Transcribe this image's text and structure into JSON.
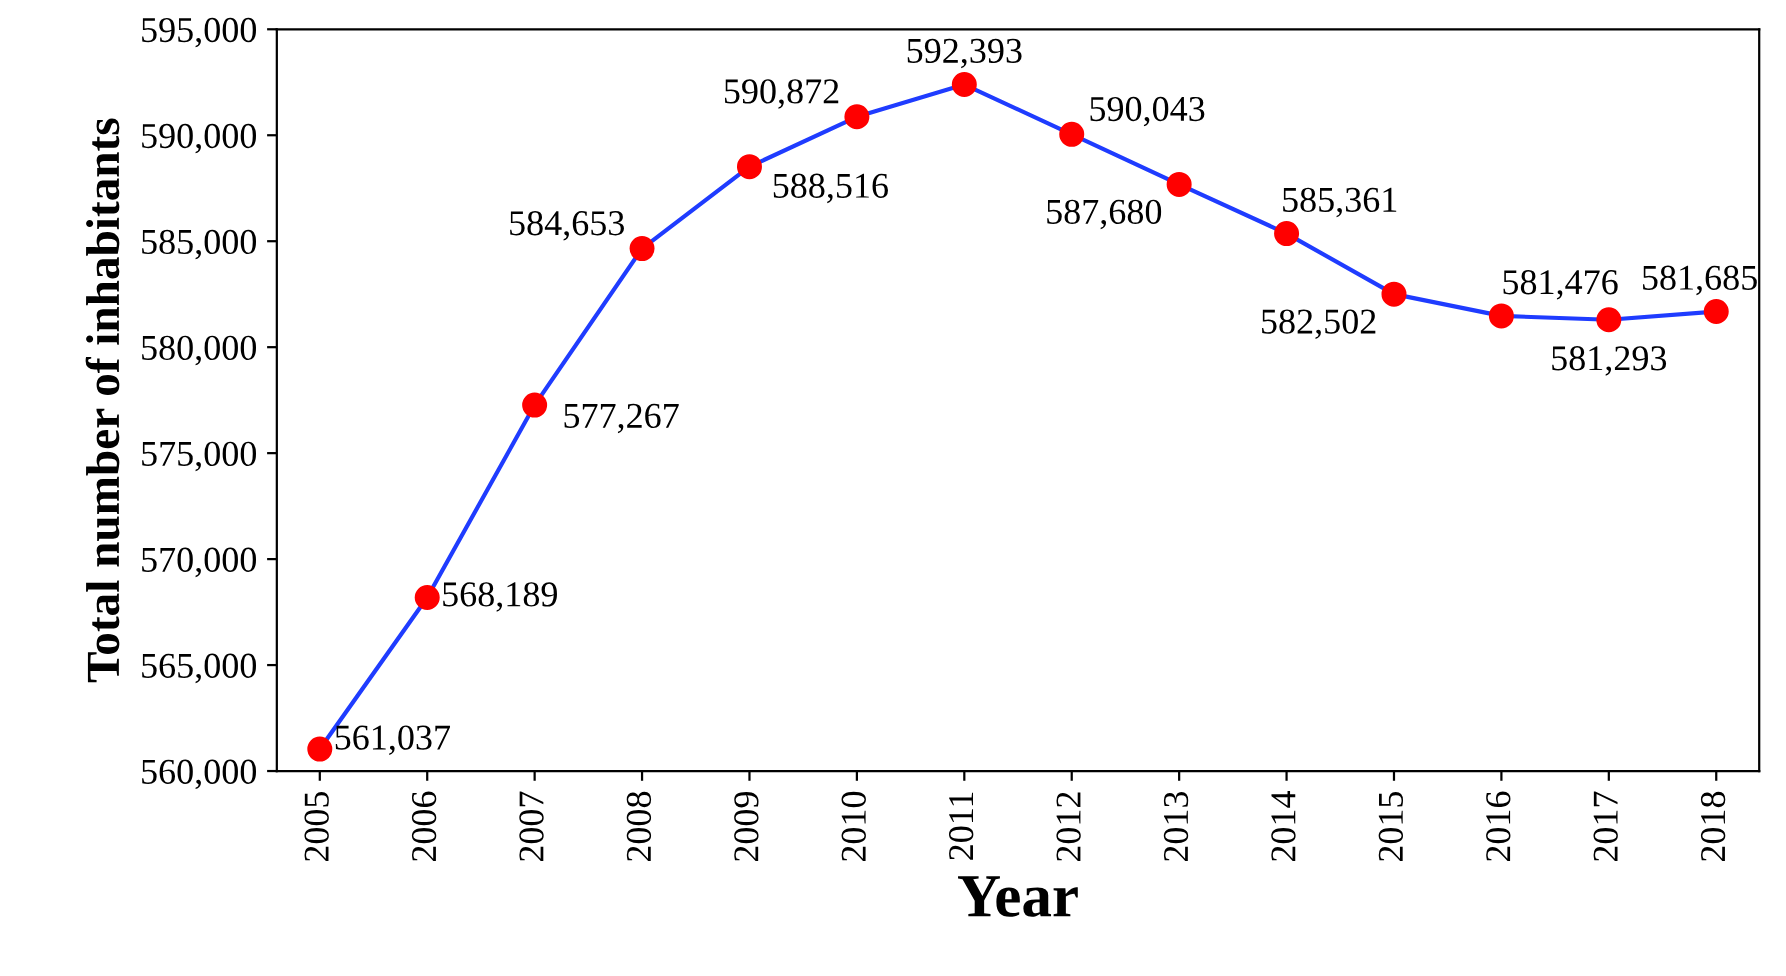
{
  "chart_data": {
    "type": "line",
    "xlabel": "Year",
    "ylabel": "Total number of inhabitants",
    "categories": [
      "2005",
      "2006",
      "2007",
      "2008",
      "2009",
      "2010",
      "2011",
      "2012",
      "2013",
      "2014",
      "2015",
      "2016",
      "2017",
      "2018"
    ],
    "series": [
      {
        "color": "#1f3cff",
        "colors": [
          "#ff0000",
          "#ff0000",
          "#ff0000",
          "#ff0000",
          "#ff0000",
          "#ff0000",
          "#ff0000",
          "#ff0000",
          "#ff0000",
          "#ff0000",
          "#ff0000",
          "#ff0000",
          "#ff0000",
          "#ff0000"
        ],
        "values": [
          561037,
          568189,
          577267,
          584653,
          588516,
          590872,
          592393,
          590043,
          587680,
          585361,
          582502,
          581476,
          581293,
          581685
        ],
        "value_labels": [
          "561,037",
          "568,189",
          "577,267",
          "584,653",
          "588,516",
          "590,872",
          "592,393",
          "590,043",
          "587,680",
          "585,361",
          "582,502",
          "581,476",
          "581,293",
          "581,685"
        ]
      }
    ],
    "ylim": [
      560000,
      595000
    ],
    "yticks": [
      {
        "value": 560000,
        "label": "560,000"
      },
      {
        "value": 565000,
        "label": "565,000"
      },
      {
        "value": 570000,
        "label": "570,000"
      },
      {
        "value": 575000,
        "label": "575,000"
      },
      {
        "value": 580000,
        "label": "580,000"
      },
      {
        "value": 585000,
        "label": "585,000"
      },
      {
        "value": 590000,
        "label": "590,000"
      },
      {
        "value": 595000,
        "label": "595,000"
      }
    ],
    "marker": "circle",
    "line_style": "solid",
    "grid": false,
    "legend": false
  }
}
